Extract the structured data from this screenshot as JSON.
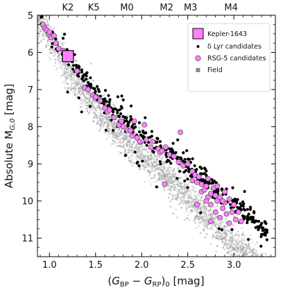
{
  "chart_data": {
    "type": "scatter",
    "xlabel": "(G_BP − G_RP)_0 [mag]",
    "xlabel_parts": {
      "open": "(",
      "g1": "G",
      "sub1": "BP",
      "minus": " − ",
      "g2": "G",
      "sub2": "RP",
      "close": ")",
      "sub0": "0",
      "unit": " [mag]"
    },
    "ylabel": "Absolute M_G,0 [mag]",
    "ylabel_parts": {
      "main": "Absolute M",
      "sub": "G,0",
      "unit": " [mag]"
    },
    "xlim": [
      0.87,
      3.45
    ],
    "ylim": [
      11.5,
      5.0
    ],
    "y_inverted": true,
    "x_ticks": [
      "1.0",
      "1.5",
      "2.0",
      "2.5",
      "3.0"
    ],
    "x_tick_values": [
      1.0,
      1.5,
      2.0,
      2.5,
      3.0
    ],
    "y_ticks": [
      "5",
      "6",
      "7",
      "8",
      "9",
      "10",
      "11"
    ],
    "y_tick_values": [
      5,
      6,
      7,
      8,
      9,
      10,
      11
    ],
    "top_axis_labels": [
      "K2",
      "K5",
      "M0",
      "M2",
      "M3",
      "M4"
    ],
    "top_axis_positions": [
      1.2,
      1.48,
      1.84,
      2.27,
      2.53,
      2.97
    ],
    "legend_position": "top-right",
    "legend": [
      {
        "label": "Kepler-1643",
        "marker": "square",
        "color": "#ff80ff"
      },
      {
        "label": "δ Lyr candidates",
        "marker": "dot",
        "color": "#000000"
      },
      {
        "label": "RSG-5 candidates",
        "marker": "circle",
        "color": "#ff80ff"
      },
      {
        "label": "Field",
        "marker": "square-small",
        "color": "#888888"
      }
    ],
    "series": [
      {
        "name": "Field",
        "color": "#b5b5b5",
        "description": "dense grey sequence of field stars",
        "ridge_x": [
          0.9,
          1.0,
          1.2,
          1.5,
          1.8,
          2.0,
          2.2,
          2.4,
          2.6,
          2.8,
          3.0,
          3.2
        ],
        "ridge_y": [
          5.2,
          5.6,
          6.5,
          7.5,
          8.3,
          8.8,
          9.2,
          9.7,
          10.2,
          10.7,
          11.2,
          11.6
        ]
      },
      {
        "name": "δ Lyr candidates",
        "color": "#000000",
        "ridge_x": [
          0.9,
          1.0,
          1.2,
          1.5,
          1.8,
          2.0,
          2.2,
          2.4,
          2.6,
          2.8,
          3.0,
          3.2
        ],
        "ridge_y": [
          5.05,
          5.5,
          6.2,
          7.05,
          7.75,
          8.2,
          8.55,
          8.9,
          9.3,
          9.7,
          10.1,
          10.5
        ],
        "count_approx": 450
      },
      {
        "name": "RSG-5 candidates",
        "color": "#ff80ff",
        "points": [
          [
            0.93,
            5.25
          ],
          [
            0.95,
            5.35
          ],
          [
            0.97,
            5.4
          ],
          [
            0.99,
            5.5
          ],
          [
            1.0,
            5.45
          ],
          [
            1.02,
            5.6
          ],
          [
            1.05,
            5.55
          ],
          [
            1.07,
            5.75
          ],
          [
            1.1,
            5.9
          ],
          [
            1.15,
            5.95
          ],
          [
            1.18,
            6.15
          ],
          [
            1.3,
            6.5
          ],
          [
            1.38,
            6.95
          ],
          [
            1.42,
            7.0
          ],
          [
            1.47,
            7.15
          ],
          [
            1.5,
            7.2
          ],
          [
            1.55,
            7.3
          ],
          [
            1.6,
            7.5
          ],
          [
            1.63,
            7.6
          ],
          [
            1.65,
            7.55
          ],
          [
            1.7,
            7.75
          ],
          [
            1.75,
            7.95
          ],
          [
            1.78,
            7.85
          ],
          [
            1.8,
            8.0
          ],
          [
            1.85,
            8.1
          ],
          [
            1.88,
            8.1
          ],
          [
            1.92,
            7.85
          ],
          [
            1.9,
            8.25
          ],
          [
            1.95,
            8.3
          ],
          [
            1.98,
            8.4
          ],
          [
            2.03,
            7.95
          ],
          [
            2.05,
            8.35
          ],
          [
            2.1,
            8.55
          ],
          [
            2.12,
            8.4
          ],
          [
            2.18,
            8.6
          ],
          [
            2.2,
            8.7
          ],
          [
            2.22,
            8.65
          ],
          [
            2.26,
            8.55
          ],
          [
            2.3,
            8.75
          ],
          [
            2.35,
            8.8
          ],
          [
            2.4,
            8.95
          ],
          [
            2.42,
            8.15
          ],
          [
            2.45,
            9.05
          ],
          [
            2.5,
            9.0
          ],
          [
            2.55,
            9.2
          ],
          [
            2.55,
            9.45
          ],
          [
            2.58,
            9.3
          ],
          [
            2.6,
            9.5
          ],
          [
            2.62,
            9.35
          ],
          [
            2.65,
            9.55
          ],
          [
            2.65,
            9.75
          ],
          [
            2.68,
            9.7
          ],
          [
            2.7,
            9.6
          ],
          [
            2.72,
            9.9
          ],
          [
            2.72,
            9.4
          ],
          [
            2.75,
            9.8
          ],
          [
            2.75,
            10.1
          ],
          [
            2.78,
            9.65
          ],
          [
            2.8,
            9.85
          ],
          [
            2.8,
            10.3
          ],
          [
            2.82,
            10.0
          ],
          [
            2.85,
            9.9
          ],
          [
            2.85,
            10.45
          ],
          [
            2.88,
            10.2
          ],
          [
            2.9,
            9.75
          ],
          [
            2.9,
            10.05
          ],
          [
            2.92,
            10.35
          ],
          [
            2.95,
            10.6
          ],
          [
            2.95,
            9.95
          ],
          [
            2.98,
            10.3
          ],
          [
            3.0,
            10.1
          ],
          [
            3.02,
            10.5
          ],
          [
            3.05,
            10.3
          ],
          [
            3.08,
            10.55
          ],
          [
            2.25,
            9.55
          ],
          [
            2.6,
            10.1
          ],
          [
            2.75,
            10.55
          ],
          [
            2.88,
            10.0
          ],
          [
            2.82,
            9.6
          ],
          [
            2.7,
            10.0
          ]
        ]
      },
      {
        "name": "Kepler-1643",
        "color": "#ff80ff",
        "points": [
          [
            1.2,
            6.1
          ]
        ]
      }
    ]
  }
}
